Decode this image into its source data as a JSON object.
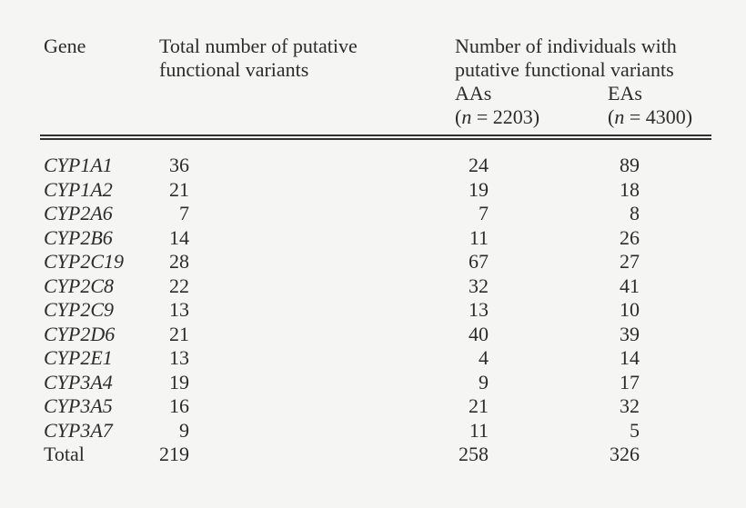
{
  "table": {
    "header": {
      "gene": "Gene",
      "total_line1": "Total number of putative",
      "total_line2": "functional variants",
      "individuals_line1": "Number of individuals with",
      "individuals_line2": "putative functional variants",
      "aas_label": "AAs",
      "aas_n_open": "(",
      "aas_n_var": "n",
      "aas_n_rest": " = 2203)",
      "eas_label": "EAs",
      "eas_n_open": "(",
      "eas_n_var": "n",
      "eas_n_rest": " = 4300)"
    },
    "rows": [
      {
        "gene": "CYP1A1",
        "total": "36",
        "aas": "24",
        "eas": "89"
      },
      {
        "gene": "CYP1A2",
        "total": "21",
        "aas": "19",
        "eas": "18"
      },
      {
        "gene": "CYP2A6",
        "total": "7",
        "aas": "7",
        "eas": "8"
      },
      {
        "gene": "CYP2B6",
        "total": "14",
        "aas": "11",
        "eas": "26"
      },
      {
        "gene": "CYP2C19",
        "total": "28",
        "aas": "67",
        "eas": "27"
      },
      {
        "gene": "CYP2C8",
        "total": "22",
        "aas": "32",
        "eas": "41"
      },
      {
        "gene": "CYP2C9",
        "total": "13",
        "aas": "13",
        "eas": "10"
      },
      {
        "gene": "CYP2D6",
        "total": "21",
        "aas": "40",
        "eas": "39"
      },
      {
        "gene": "CYP2E1",
        "total": "13",
        "aas": "4",
        "eas": "14"
      },
      {
        "gene": "CYP3A4",
        "total": "19",
        "aas": "9",
        "eas": "17"
      },
      {
        "gene": "CYP3A5",
        "total": "16",
        "aas": "21",
        "eas": "32"
      },
      {
        "gene": "CYP3A7",
        "total": "9",
        "aas": "11",
        "eas": "5"
      },
      {
        "gene": "Total",
        "total": "219",
        "aas": "258",
        "eas": "326"
      }
    ]
  },
  "colors": {
    "background": "#f5f5f4",
    "text": "#2b2b2b",
    "rule": "#323232"
  },
  "chart_data": {
    "type": "table",
    "columns": [
      "Gene",
      "Total number of putative functional variants",
      "Number of individuals with putative functional variants - AAs (n = 2203)",
      "Number of individuals with putative functional variants - EAs (n = 4300)"
    ],
    "rows": [
      [
        "CYP1A1",
        36,
        24,
        89
      ],
      [
        "CYP1A2",
        21,
        19,
        18
      ],
      [
        "CYP2A6",
        7,
        7,
        8
      ],
      [
        "CYP2B6",
        14,
        11,
        26
      ],
      [
        "CYP2C19",
        28,
        67,
        27
      ],
      [
        "CYP2C8",
        22,
        32,
        41
      ],
      [
        "CYP2C9",
        13,
        13,
        10
      ],
      [
        "CYP2D6",
        21,
        40,
        39
      ],
      [
        "CYP2E1",
        13,
        4,
        14
      ],
      [
        "CYP3A4",
        19,
        9,
        17
      ],
      [
        "CYP3A5",
        16,
        21,
        32
      ],
      [
        "CYP3A7",
        9,
        11,
        5
      ],
      [
        "Total",
        219,
        258,
        326
      ]
    ]
  }
}
